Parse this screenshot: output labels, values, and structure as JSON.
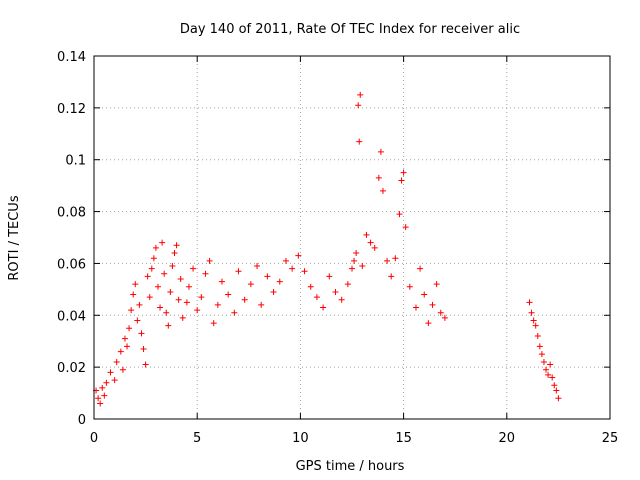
{
  "chart_data": {
    "type": "scatter",
    "title": "Day 140 of 2011, Rate Of TEC Index for receiver alic",
    "xlabel": "GPS time / hours",
    "ylabel": "ROTI / TECUs",
    "xlim": [
      0,
      25
    ],
    "ylim": [
      0,
      0.14
    ],
    "xticks": [
      0,
      5,
      10,
      15,
      20,
      25
    ],
    "yticks": [
      0,
      0.02,
      0.04,
      0.06,
      0.08,
      0.1,
      0.12,
      0.14
    ],
    "xtick_labels": [
      "0",
      "5",
      "10",
      "15",
      "20",
      "25"
    ],
    "ytick_labels": [
      "0",
      "0.02",
      "0.04",
      "0.06",
      "0.08",
      "0.1",
      "0.12",
      "0.14"
    ],
    "grid": true,
    "marker": "plus",
    "color": "#ff0000",
    "series": [
      {
        "points": [
          [
            0.1,
            0.011
          ],
          [
            0.2,
            0.008
          ],
          [
            0.3,
            0.006
          ],
          [
            0.4,
            0.012
          ],
          [
            0.5,
            0.009
          ],
          [
            0.6,
            0.014
          ],
          [
            0.8,
            0.018
          ],
          [
            1.0,
            0.015
          ],
          [
            1.1,
            0.022
          ],
          [
            1.3,
            0.026
          ],
          [
            1.4,
            0.019
          ],
          [
            1.5,
            0.031
          ],
          [
            1.6,
            0.028
          ],
          [
            1.7,
            0.035
          ],
          [
            1.8,
            0.042
          ],
          [
            1.9,
            0.048
          ],
          [
            2.0,
            0.052
          ],
          [
            2.1,
            0.038
          ],
          [
            2.2,
            0.044
          ],
          [
            2.3,
            0.033
          ],
          [
            2.4,
            0.027
          ],
          [
            2.5,
            0.021
          ],
          [
            2.6,
            0.055
          ],
          [
            2.7,
            0.047
          ],
          [
            2.8,
            0.058
          ],
          [
            2.9,
            0.062
          ],
          [
            3.0,
            0.066
          ],
          [
            3.1,
            0.051
          ],
          [
            3.2,
            0.043
          ],
          [
            3.3,
            0.068
          ],
          [
            3.4,
            0.056
          ],
          [
            3.5,
            0.041
          ],
          [
            3.6,
            0.036
          ],
          [
            3.7,
            0.049
          ],
          [
            3.8,
            0.059
          ],
          [
            3.9,
            0.064
          ],
          [
            4.0,
            0.067
          ],
          [
            4.1,
            0.046
          ],
          [
            4.2,
            0.054
          ],
          [
            4.3,
            0.039
          ],
          [
            4.5,
            0.045
          ],
          [
            4.6,
            0.051
          ],
          [
            4.8,
            0.058
          ],
          [
            5.0,
            0.042
          ],
          [
            5.2,
            0.047
          ],
          [
            5.4,
            0.056
          ],
          [
            5.6,
            0.061
          ],
          [
            5.8,
            0.037
          ],
          [
            6.0,
            0.044
          ],
          [
            6.2,
            0.053
          ],
          [
            6.5,
            0.048
          ],
          [
            6.8,
            0.041
          ],
          [
            7.0,
            0.057
          ],
          [
            7.3,
            0.046
          ],
          [
            7.6,
            0.052
          ],
          [
            7.9,
            0.059
          ],
          [
            8.1,
            0.044
          ],
          [
            8.4,
            0.055
          ],
          [
            8.7,
            0.049
          ],
          [
            9.0,
            0.053
          ],
          [
            9.3,
            0.061
          ],
          [
            9.6,
            0.058
          ],
          [
            9.9,
            0.063
          ],
          [
            10.2,
            0.057
          ],
          [
            10.5,
            0.051
          ],
          [
            10.8,
            0.047
          ],
          [
            11.1,
            0.043
          ],
          [
            11.4,
            0.055
          ],
          [
            11.7,
            0.049
          ],
          [
            12.0,
            0.046
          ],
          [
            12.3,
            0.052
          ],
          [
            12.5,
            0.058
          ],
          [
            12.6,
            0.061
          ],
          [
            12.7,
            0.064
          ],
          [
            12.8,
            0.121
          ],
          [
            12.9,
            0.125
          ],
          [
            12.85,
            0.107
          ],
          [
            13.0,
            0.059
          ],
          [
            13.2,
            0.071
          ],
          [
            13.4,
            0.068
          ],
          [
            13.6,
            0.066
          ],
          [
            13.8,
            0.093
          ],
          [
            13.9,
            0.103
          ],
          [
            14.0,
            0.088
          ],
          [
            14.2,
            0.061
          ],
          [
            14.4,
            0.055
          ],
          [
            14.6,
            0.062
          ],
          [
            14.8,
            0.079
          ],
          [
            14.9,
            0.092
          ],
          [
            15.0,
            0.095
          ],
          [
            15.1,
            0.074
          ],
          [
            15.3,
            0.051
          ],
          [
            15.6,
            0.043
          ],
          [
            15.8,
            0.058
          ],
          [
            16.0,
            0.048
          ],
          [
            16.2,
            0.037
          ],
          [
            16.4,
            0.044
          ],
          [
            16.6,
            0.052
          ],
          [
            16.8,
            0.041
          ],
          [
            17.0,
            0.039
          ],
          [
            21.1,
            0.045
          ],
          [
            21.2,
            0.041
          ],
          [
            21.3,
            0.038
          ],
          [
            21.4,
            0.036
          ],
          [
            21.5,
            0.032
          ],
          [
            21.6,
            0.028
          ],
          [
            21.7,
            0.025
          ],
          [
            21.8,
            0.022
          ],
          [
            21.9,
            0.019
          ],
          [
            22.0,
            0.017
          ],
          [
            22.1,
            0.021
          ],
          [
            22.2,
            0.016
          ],
          [
            22.3,
            0.013
          ],
          [
            22.4,
            0.011
          ],
          [
            22.5,
            0.008
          ]
        ]
      }
    ]
  }
}
